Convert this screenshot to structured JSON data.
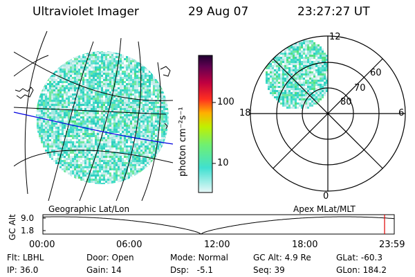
{
  "header": {
    "instrument": "Ultraviolet Imager",
    "date": "29 Aug 07",
    "time": "23:27:27 UT"
  },
  "colorbar": {
    "unit_label": "photon cm⁻²s⁻¹",
    "ticks": [
      "100",
      "10"
    ],
    "colors": [
      "#e0f4f4",
      "#40e0d0",
      "#80ff40",
      "#f0e000",
      "#ff8000",
      "#ff2020",
      "#b00030",
      "#300040"
    ]
  },
  "geo_panel": {
    "label": "Geographic Lat/Lon"
  },
  "polar_panel": {
    "label": "Apex MLat/MLT",
    "mlt_labels": {
      "top": "12",
      "left": "18",
      "right": "6",
      "bottom": "0"
    },
    "lat_labels": [
      "60",
      "70",
      "80"
    ]
  },
  "altitude_plot": {
    "ylabel": "GC Alt",
    "yticks": [
      "9.0",
      "1.8"
    ],
    "xticks": [
      "00:00",
      "06:00",
      "12:00",
      "18:00",
      "23:59"
    ],
    "marker_color": "#e00000"
  },
  "info": {
    "row1": [
      {
        "key": "Flt:",
        "value": "LBHL"
      },
      {
        "key": "Door:",
        "value": "Open"
      },
      {
        "key": "Mode:",
        "value": "Normal"
      },
      {
        "key": "GC Alt:",
        "value": "4.9 Re"
      },
      {
        "key": "GLat:",
        "value": "-60.3"
      }
    ],
    "row2": [
      {
        "key": "IP:",
        "value": "36.0"
      },
      {
        "key": "Gain:",
        "value": "14"
      },
      {
        "key": "Dsp:",
        "value": "-5.1"
      },
      {
        "key": "Seq:",
        "value": "39"
      },
      {
        "key": "GLon:",
        "value": "184.2"
      }
    ]
  }
}
